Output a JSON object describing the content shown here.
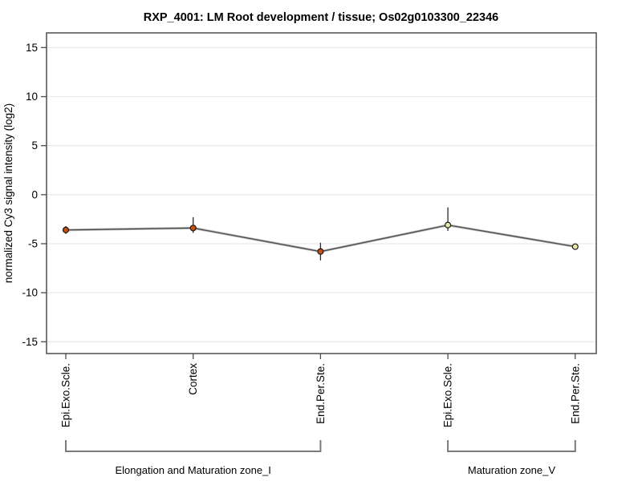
{
  "chart_data": {
    "type": "line",
    "title": "RXP_4001: LM Root development / tissue; Os02g0103300_22346",
    "ylabel": "normalized Cy3 signal intensity (log2)",
    "xlabel": "",
    "ylim": [
      -16.2,
      16.5
    ],
    "yticks": [
      15,
      10,
      5,
      0,
      -5,
      -10,
      -15
    ],
    "grid": "horizontal-light-gray",
    "legend": "none",
    "categories": [
      "Epi.Exo.Scle.",
      "Cortex",
      "End.Per.Ste.",
      "Epi.Exo.Scle.",
      "End.Per.Ste."
    ],
    "series": [
      {
        "name": "normalized Cy3 signal intensity",
        "values": [
          -3.6,
          -3.4,
          -5.8,
          -3.1,
          -5.3
        ],
        "error_low": [
          -4.0,
          -3.9,
          -6.7,
          -3.7,
          -5.5
        ],
        "error_high": [
          -3.2,
          -2.3,
          -4.9,
          -1.3,
          -5.1
        ]
      }
    ],
    "point_fill_colors": [
      "#cc4e0c",
      "#cc4e0c",
      "#cc4e0c",
      "#e6e6ac",
      "#e6e6ac"
    ],
    "point_outline_color": "#1a1a1a",
    "line_color": "#4d4d4d",
    "line_halo_color": "#bbbbbb",
    "gridline_color": "#ebebeb",
    "axis_color": "#4d4d4d",
    "bracket_color": "#7a7a7a",
    "groups": [
      {
        "label": "Elongation and Maturation zone_I",
        "from": 0,
        "to": 2
      },
      {
        "label": "Maturation zone_V",
        "from": 3,
        "to": 4
      }
    ]
  }
}
